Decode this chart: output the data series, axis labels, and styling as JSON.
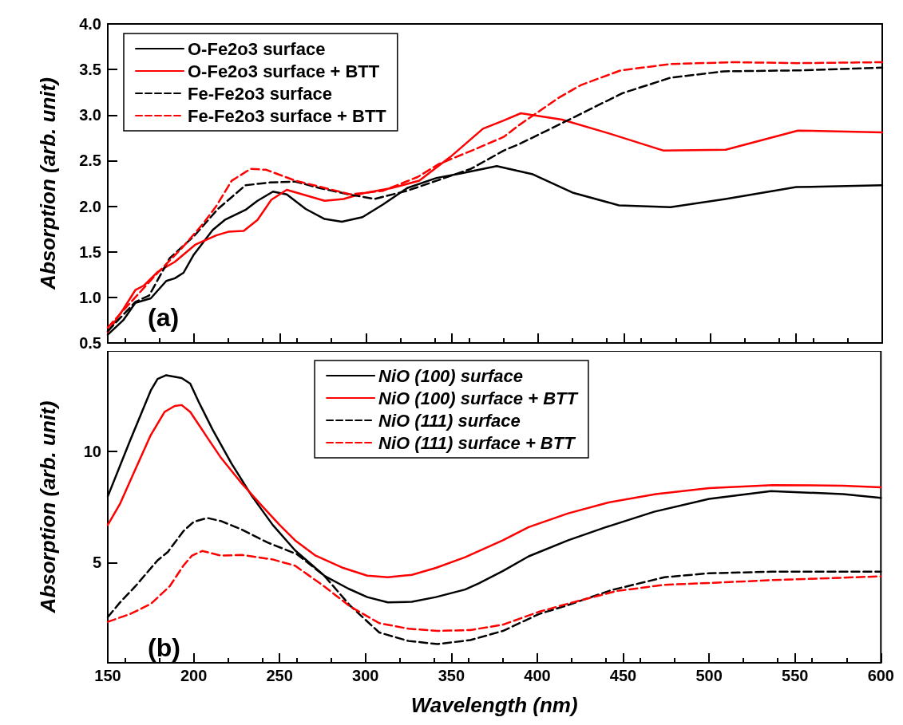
{
  "chart_data": [
    {
      "type": "line",
      "ylabel": "Absorption (arb. unit)",
      "annotations": [
        "(a)"
      ],
      "xlim": [
        150,
        600
      ],
      "xticks": [
        150,
        200,
        250,
        300,
        350,
        400,
        450,
        500,
        550,
        600
      ],
      "ylim": [
        0.5,
        4.0
      ],
      "yticks": [
        {
          "value": 0.5,
          "label": "0.5"
        },
        {
          "value": 1.0,
          "label": "1.0"
        },
        {
          "value": 1.5,
          "label": "1.5"
        },
        {
          "value": 2.0,
          "label": "2.0"
        },
        {
          "value": 2.5,
          "label": "2.5"
        },
        {
          "value": 3.0,
          "label": "3.0"
        },
        {
          "value": 3.5,
          "label": "3.5"
        },
        {
          "value": 4.0,
          "label": "4.0"
        }
      ],
      "tick_labels": "y",
      "legend": "top left",
      "marker": "none",
      "series": [
        {
          "name": "O-Fe2o3 surface",
          "color": "#000000",
          "line_style": "solid",
          "x": [
            150,
            159,
            166,
            175,
            184,
            189,
            194,
            200,
            211,
            218,
            230,
            237,
            246,
            254,
            265,
            276,
            286,
            298,
            310,
            324,
            341,
            355,
            376,
            397,
            420,
            447,
            477,
            509,
            550,
            600
          ],
          "values": [
            0.59,
            0.75,
            0.94,
            0.99,
            1.18,
            1.21,
            1.27,
            1.47,
            1.74,
            1.85,
            1.96,
            2.06,
            2.16,
            2.13,
            1.97,
            1.86,
            1.83,
            1.88,
            2.02,
            2.2,
            2.31,
            2.36,
            2.44,
            2.35,
            2.15,
            2.01,
            1.99,
            2.08,
            2.21,
            2.23
          ]
        },
        {
          "name": "O-Fe2o3 surface + BTT",
          "color": "#ff0000",
          "line_style": "solid",
          "x": [
            150,
            159,
            166,
            171,
            179,
            189,
            201,
            213,
            220,
            229,
            237,
            245,
            254,
            276,
            287,
            298,
            315,
            331,
            349,
            368,
            380,
            390,
            414,
            441,
            473,
            509,
            551,
            600
          ],
          "values": [
            0.62,
            0.87,
            1.08,
            1.13,
            1.28,
            1.39,
            1.58,
            1.68,
            1.72,
            1.73,
            1.85,
            2.07,
            2.18,
            2.06,
            2.08,
            2.14,
            2.2,
            2.28,
            2.54,
            2.85,
            2.94,
            3.02,
            2.95,
            2.8,
            2.61,
            2.62,
            2.83,
            2.81
          ]
        },
        {
          "name": "Fe-Fe2o3 surface",
          "color": "#000000",
          "line_style": "dashed",
          "x": [
            150,
            166,
            174,
            186,
            200,
            214,
            230,
            244,
            259,
            273,
            290,
            305,
            324,
            341,
            361,
            380,
            390,
            417,
            449,
            477,
            508,
            551,
            600
          ],
          "values": [
            0.63,
            0.95,
            1.02,
            1.43,
            1.67,
            1.97,
            2.23,
            2.26,
            2.27,
            2.2,
            2.13,
            2.08,
            2.17,
            2.28,
            2.41,
            2.61,
            2.69,
            2.94,
            3.24,
            3.41,
            3.48,
            3.49,
            3.52
          ]
        },
        {
          "name": "Fe-Fe2o3 surface + BTT",
          "color": "#ff0000",
          "line_style": "dashed",
          "x": [
            150,
            165,
            179,
            193,
            205,
            213,
            222,
            233,
            242,
            259,
            274,
            291,
            310,
            330,
            342,
            364,
            380,
            389,
            412,
            425,
            448,
            477,
            513,
            551,
            600
          ],
          "values": [
            0.67,
            0.98,
            1.27,
            1.54,
            1.8,
            2.0,
            2.28,
            2.41,
            2.4,
            2.28,
            2.21,
            2.13,
            2.17,
            2.32,
            2.46,
            2.63,
            2.76,
            2.89,
            3.19,
            3.33,
            3.49,
            3.56,
            3.58,
            3.57,
            3.58
          ]
        }
      ]
    },
    {
      "type": "line",
      "xlabel": "Wavelength (nm)",
      "ylabel": "Absorption (arb. unit)",
      "annotations": [
        "(b)"
      ],
      "xlim": [
        150,
        600
      ],
      "xticks": [
        150,
        200,
        250,
        300,
        350,
        400,
        450,
        500,
        550,
        600
      ],
      "ylim": [
        0.5,
        14.5
      ],
      "yticks": [
        5,
        10
      ],
      "legend": "top",
      "marker": "none",
      "series": [
        {
          "name": "NiO (100) surface",
          "color": "#000000",
          "line_style": "solid",
          "x": [
            150,
            163,
            175,
            179,
            184,
            193,
            198,
            203,
            211,
            222,
            234,
            246,
            259,
            276,
            290,
            301,
            313,
            327,
            341,
            358,
            366,
            380,
            395,
            418,
            440,
            468,
            500,
            536,
            578,
            600
          ],
          "values": [
            7.97,
            10.48,
            12.72,
            13.24,
            13.41,
            13.28,
            13.03,
            12.2,
            10.97,
            9.45,
            7.97,
            6.69,
            5.55,
            4.41,
            3.83,
            3.45,
            3.21,
            3.24,
            3.45,
            3.79,
            4.07,
            4.62,
            5.28,
            6.0,
            6.59,
            7.28,
            7.86,
            8.21,
            8.07,
            7.9
          ]
        },
        {
          "name": "NiO (100) surface + BTT",
          "color": "#ff0000",
          "line_style": "solid",
          "x": [
            150,
            157,
            165,
            175,
            183,
            189,
            193,
            198,
            207,
            216,
            228,
            240,
            250,
            259,
            271,
            287,
            301,
            313,
            327,
            341,
            358,
            380,
            395,
            418,
            441,
            469,
            500,
            537,
            578,
            600
          ],
          "values": [
            6.69,
            7.62,
            9.0,
            10.72,
            11.76,
            12.03,
            12.07,
            11.76,
            10.72,
            9.69,
            8.55,
            7.52,
            6.69,
            6.0,
            5.31,
            4.76,
            4.41,
            4.34,
            4.45,
            4.76,
            5.24,
            6.0,
            6.59,
            7.21,
            7.69,
            8.07,
            8.34,
            8.48,
            8.45,
            8.38
          ]
        },
        {
          "name": "NiO (111) surface",
          "color": "#000000",
          "line_style": "dashed",
          "x": [
            150,
            157,
            166,
            179,
            185,
            194,
            200,
            208,
            216,
            228,
            243,
            260,
            276,
            291,
            308,
            325,
            342,
            361,
            380,
            401,
            417,
            443,
            474,
            500,
            536,
            600
          ],
          "values": [
            2.55,
            3.2,
            3.93,
            5.1,
            5.48,
            6.41,
            6.83,
            7.0,
            6.86,
            6.48,
            5.9,
            5.38,
            4.41,
            3.07,
            1.86,
            1.48,
            1.34,
            1.52,
            1.93,
            2.69,
            3.07,
            3.76,
            4.34,
            4.52,
            4.59,
            4.59
          ]
        },
        {
          "name": "NiO (111) surface + BTT",
          "color": "#ff0000",
          "line_style": "dashed",
          "x": [
            150,
            163,
            175,
            186,
            194,
            199,
            205,
            216,
            228,
            246,
            259,
            276,
            291,
            308,
            325,
            342,
            361,
            380,
            401,
            420,
            446,
            474,
            505,
            536,
            600
          ],
          "values": [
            2.34,
            2.69,
            3.14,
            3.93,
            4.86,
            5.31,
            5.52,
            5.31,
            5.34,
            5.14,
            4.86,
            3.93,
            3.03,
            2.28,
            2.03,
            1.93,
            1.97,
            2.21,
            2.79,
            3.2,
            3.72,
            4.0,
            4.1,
            4.21,
            4.38
          ]
        }
      ]
    }
  ]
}
